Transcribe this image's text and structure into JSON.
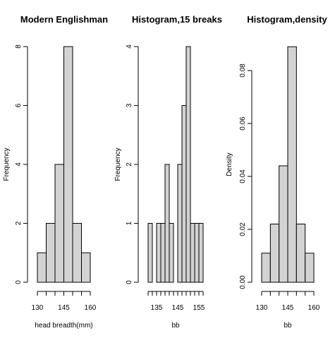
{
  "chart_data": [
    {
      "type": "bar",
      "title": "Modern Englishman",
      "xlabel": "head breadth(mm)",
      "ylabel": "Frequency",
      "x_ticks": [
        "130",
        "145",
        "160"
      ],
      "y_ticks": [
        "0",
        "2",
        "4",
        "6",
        "8"
      ],
      "bins": [
        [
          130,
          135
        ],
        [
          135,
          140
        ],
        [
          140,
          145
        ],
        [
          145,
          150
        ],
        [
          150,
          155
        ],
        [
          155,
          160
        ]
      ],
      "values": [
        1,
        2,
        4,
        8,
        2,
        1
      ],
      "xlim": [
        130,
        160
      ],
      "ylim": [
        0,
        8
      ]
    },
    {
      "type": "bar",
      "title": "Histogram,15 breaks",
      "xlabel": "bb",
      "ylabel": "Frequency",
      "x_ticks": [
        "135",
        "145",
        "155"
      ],
      "y_ticks": [
        "0",
        "1",
        "2",
        "3",
        "4"
      ],
      "bins": [
        [
          131,
          133
        ],
        [
          133,
          135
        ],
        [
          135,
          137
        ],
        [
          137,
          139
        ],
        [
          139,
          141
        ],
        [
          141,
          143
        ],
        [
          143,
          145
        ],
        [
          145,
          147
        ],
        [
          147,
          149
        ],
        [
          149,
          151
        ],
        [
          151,
          153
        ],
        [
          153,
          155
        ],
        [
          155,
          157
        ]
      ],
      "values": [
        1,
        0,
        1,
        1,
        2,
        1,
        0,
        2,
        3,
        4,
        1,
        1,
        1
      ],
      "xlim": [
        131,
        157
      ],
      "ylim": [
        0,
        4
      ]
    },
    {
      "type": "bar",
      "title": "Histogram,density",
      "xlabel": "bb",
      "ylabel": "Density",
      "x_ticks": [
        "130",
        "145",
        "160"
      ],
      "y_ticks": [
        "0.00",
        "0.02",
        "0.04",
        "0.06",
        "0.08"
      ],
      "bins": [
        [
          130,
          135
        ],
        [
          135,
          140
        ],
        [
          140,
          145
        ],
        [
          145,
          150
        ],
        [
          150,
          155
        ],
        [
          155,
          160
        ]
      ],
      "values": [
        0.011,
        0.022,
        0.044,
        0.089,
        0.022,
        0.011
      ],
      "xlim": [
        130,
        160
      ],
      "ylim": [
        0,
        0.08
      ]
    }
  ]
}
